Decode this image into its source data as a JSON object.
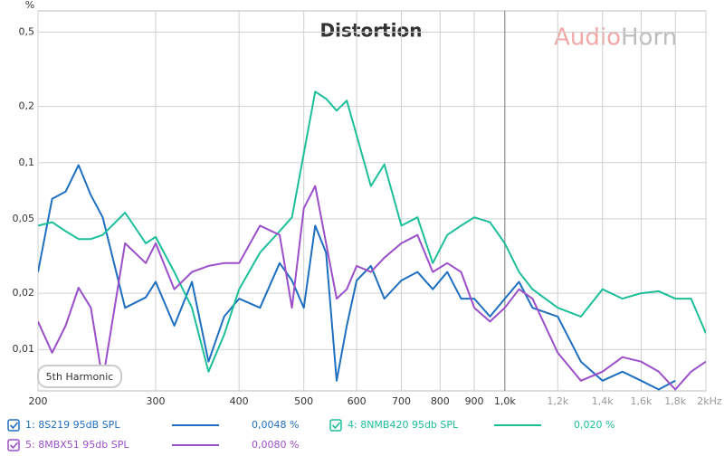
{
  "chart_data": {
    "type": "line",
    "title": "Distortion",
    "y_axis_label": "%",
    "watermark": [
      "Audio",
      "Horn"
    ],
    "annotation": "5th Harmonic",
    "log_x": true,
    "log_y": true,
    "grid": true,
    "x": [
      200,
      210,
      220,
      230,
      240,
      250,
      270,
      290,
      300,
      320,
      340,
      360,
      380,
      400,
      430,
      460,
      480,
      500,
      520,
      540,
      560,
      580,
      600,
      630,
      660,
      700,
      740,
      780,
      820,
      860,
      900,
      950,
      1000,
      1050,
      1100,
      1200,
      1300,
      1400,
      1500,
      1600,
      1700,
      1800,
      1900,
      2000
    ],
    "xlim": [
      200,
      2000
    ],
    "xticks": [
      200,
      300,
      400,
      500,
      600,
      700,
      800,
      900,
      {
        "value": 1000,
        "label": "1,0k"
      },
      {
        "value": 1200,
        "label": "1,2k"
      },
      {
        "value": 1400,
        "label": "1,4k"
      },
      {
        "value": 1600,
        "label": "1,6k"
      },
      {
        "value": 1800,
        "label": "1,8k"
      },
      {
        "value": 2000,
        "label": "2kHz"
      }
    ],
    "ylim": [
      0.006,
      0.65
    ],
    "yticks": [
      {
        "value": 0.5,
        "label": "0,5"
      },
      {
        "value": 0.2,
        "label": "0,2"
      },
      {
        "value": 0.1,
        "label": "0,1"
      },
      {
        "value": 0.05,
        "label": "0,05"
      },
      {
        "value": 0.02,
        "label": "0,02"
      },
      {
        "value": 0.01,
        "label": "0,01"
      }
    ],
    "series": [
      {
        "name": "1: 8S219 95dB SPL",
        "color": "#1f6fc0",
        "readout": {
          "value": 0.0048,
          "label": "0,0048 %"
        },
        "values": [
          0.026,
          0.064,
          0.07,
          0.097,
          0.067,
          0.051,
          0.0167,
          0.019,
          0.023,
          0.0134,
          0.023,
          0.0086,
          0.015,
          0.0187,
          0.0167,
          0.029,
          0.0234,
          0.0167,
          0.046,
          0.033,
          0.0068,
          0.0134,
          0.0234,
          0.028,
          0.0187,
          0.0234,
          0.026,
          0.021,
          0.026,
          0.0187,
          0.0187,
          0.015,
          0.0187,
          0.023,
          0.0167,
          0.015,
          0.0086,
          0.0068,
          0.0076,
          0.0068,
          0.0061,
          0.0068,
          null,
          null
        ]
      },
      {
        "name": "4: 8NMB420 95db SPL",
        "color": "#1dbf9a",
        "readout": {
          "value": 0.02,
          "label": "0,020 %"
        },
        "values": [
          0.046,
          0.048,
          0.043,
          0.039,
          0.039,
          0.041,
          0.054,
          0.037,
          0.04,
          0.026,
          0.0167,
          0.0076,
          0.012,
          0.021,
          0.033,
          0.043,
          0.051,
          0.112,
          0.24,
          0.22,
          0.19,
          0.215,
          0.14,
          0.075,
          0.098,
          0.046,
          0.051,
          0.029,
          0.041,
          0.046,
          0.051,
          0.048,
          0.037,
          0.026,
          0.021,
          0.0167,
          0.015,
          0.021,
          0.0187,
          0.02,
          0.0205,
          0.0187,
          0.0187,
          0.0122
        ]
      },
      {
        "name": "5: 8MBX51 95db SPL",
        "color": "#9b4fc8",
        "readout": {
          "value": 0.008,
          "label": "0,0080 %"
        },
        "values": [
          0.0141,
          0.0096,
          0.0134,
          0.0214,
          0.0167,
          0.0068,
          0.037,
          0.029,
          0.037,
          0.021,
          0.026,
          0.028,
          0.029,
          0.029,
          0.046,
          0.041,
          0.0167,
          0.057,
          0.075,
          0.037,
          0.0187,
          0.021,
          0.028,
          0.026,
          0.031,
          0.037,
          0.041,
          0.026,
          0.029,
          0.026,
          0.0167,
          0.0141,
          0.0167,
          0.021,
          0.0187,
          0.0096,
          0.0068,
          0.0076,
          0.0091,
          0.0086,
          0.0076,
          0.0061,
          0.0076,
          0.0086
        ]
      }
    ]
  }
}
